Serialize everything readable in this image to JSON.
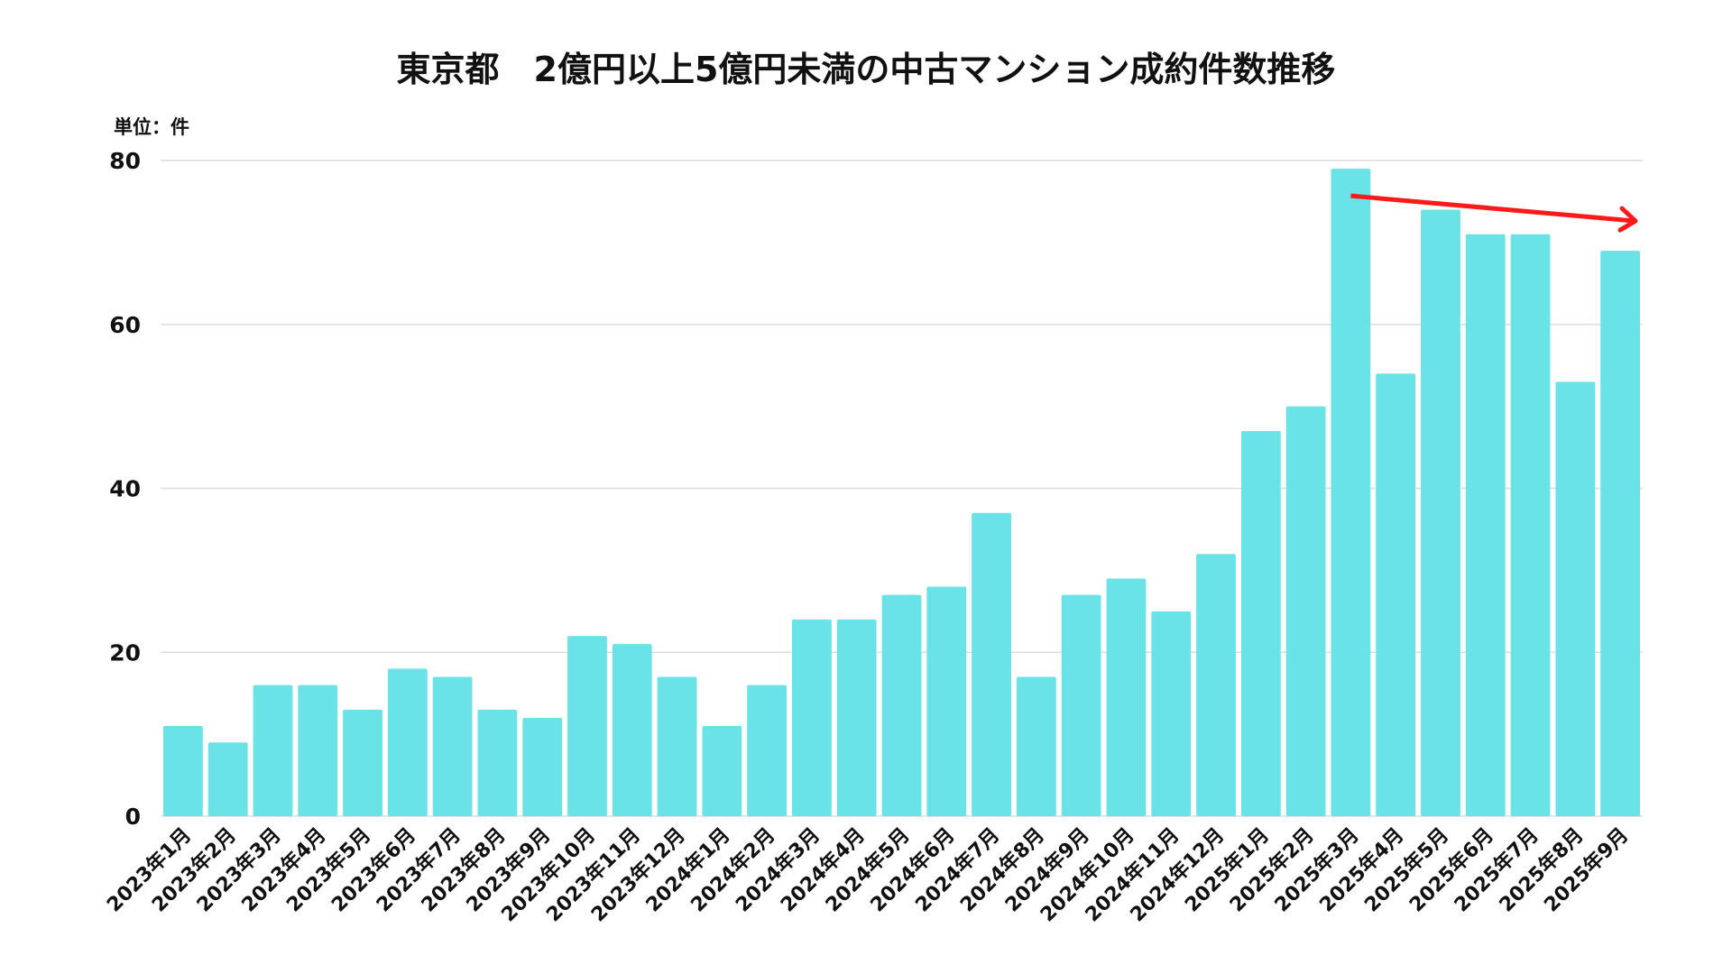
{
  "chart_data": {
    "type": "bar",
    "title": "東京都　2億円以上5億円未満の中古マンション成約件数推移",
    "unit_label": "単位：件",
    "xlabel": "",
    "ylabel": "",
    "ylim": [
      0,
      80
    ],
    "yticks": [
      0,
      20,
      40,
      60,
      80
    ],
    "grid": true,
    "bar_color": "#6ae3e6",
    "annotation": {
      "type": "arrow",
      "from_category": "2025年3月",
      "to_category": "2025年9月",
      "color": "#ff1a1a"
    },
    "categories": [
      "2023年1月",
      "2023年2月",
      "2023年3月",
      "2023年4月",
      "2023年5月",
      "2023年6月",
      "2023年7月",
      "2023年8月",
      "2023年9月",
      "2023年10月",
      "2023年11月",
      "2023年12月",
      "2024年1月",
      "2024年2月",
      "2024年3月",
      "2024年4月",
      "2024年5月",
      "2024年6月",
      "2024年7月",
      "2024年8月",
      "2024年9月",
      "2024年10月",
      "2024年11月",
      "2024年12月",
      "2025年1月",
      "2025年2月",
      "2025年3月",
      "2025年4月",
      "2025年5月",
      "2025年6月",
      "2025年7月",
      "2025年8月",
      "2025年9月"
    ],
    "values": [
      11,
      9,
      16,
      16,
      13,
      18,
      17,
      13,
      12,
      22,
      21,
      17,
      11,
      16,
      24,
      24,
      27,
      28,
      37,
      17,
      27,
      29,
      25,
      32,
      47,
      50,
      79,
      54,
      74,
      71,
      71,
      53,
      69
    ]
  }
}
